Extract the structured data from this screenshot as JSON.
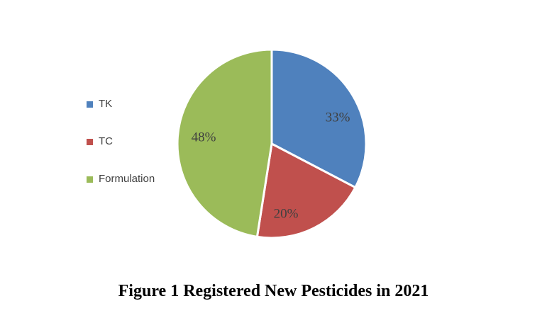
{
  "chart_data": {
    "type": "pie",
    "title": "Figure 1 Registered New Pesticides in 2021",
    "legend_position": "left",
    "start_angle_deg": 0,
    "direction": "clockwise",
    "slice_border_color": "#ffffff",
    "label_color": "#404040",
    "background_color": "#ffffff",
    "categories": [
      "TK",
      "TC",
      "Formulation"
    ],
    "values": [
      33,
      20,
      48
    ],
    "slices": [
      {
        "name": "TK",
        "value": 33,
        "label": "33%",
        "color": "#4F81BD"
      },
      {
        "name": "TC",
        "value": 20,
        "label": "20%",
        "color": "#C0504D"
      },
      {
        "name": "Formulation",
        "value": 48,
        "label": "48%",
        "color": "#9BBB59"
      }
    ]
  }
}
